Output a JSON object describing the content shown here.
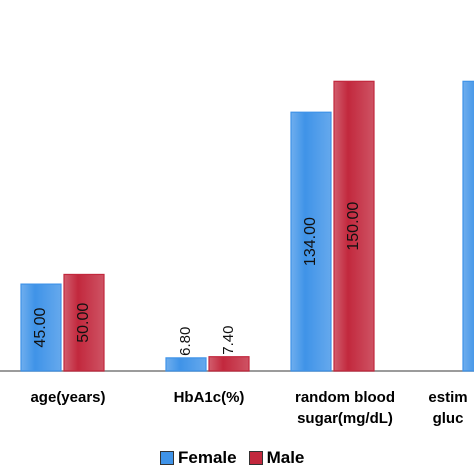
{
  "chart_data": {
    "type": "bar",
    "categories": [
      "age(years)",
      "HbA1c(%)",
      "random blood sugar(mg/dL)",
      "estim gluc"
    ],
    "category_lines": [
      [
        "age(years)"
      ],
      [
        "HbA1c(%)"
      ],
      [
        "random blood",
        "sugar(mg/dL)"
      ],
      [
        "estim",
        "gluc"
      ]
    ],
    "series": [
      {
        "name": "Female",
        "color": "#3f93e8",
        "values": [
          45.0,
          6.8,
          134.0,
          150.0
        ],
        "labels": [
          "45.00",
          "6.80",
          "134.00",
          ""
        ]
      },
      {
        "name": "Male",
        "color": "#c2283d",
        "values": [
          50.0,
          7.4,
          150.0,
          null
        ],
        "labels": [
          "50.00",
          "7.40",
          "150.00",
          ""
        ]
      }
    ],
    "xlabel": "",
    "ylabel": "",
    "ylim": [
      0,
      160
    ],
    "grid": false,
    "legend_position": "bottom"
  },
  "legend": {
    "female": "Female",
    "male": "Male"
  }
}
